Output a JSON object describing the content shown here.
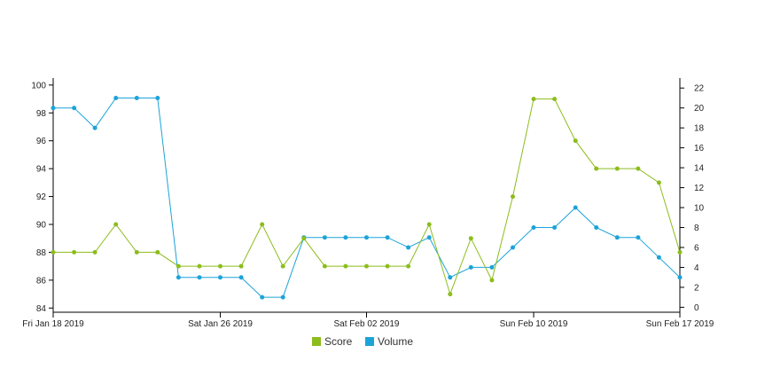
{
  "chart_data": {
    "type": "line",
    "x": [
      "2019-01-18",
      "2019-01-19",
      "2019-01-20",
      "2019-01-21",
      "2019-01-22",
      "2019-01-23",
      "2019-01-24",
      "2019-01-25",
      "2019-01-26",
      "2019-01-27",
      "2019-01-28",
      "2019-01-29",
      "2019-01-30",
      "2019-01-31",
      "2019-02-01",
      "2019-02-02",
      "2019-02-03",
      "2019-02-04",
      "2019-02-05",
      "2019-02-06",
      "2019-02-07",
      "2019-02-08",
      "2019-02-09",
      "2019-02-10",
      "2019-02-11",
      "2019-02-12",
      "2019-02-13",
      "2019-02-14",
      "2019-02-15",
      "2019-02-16",
      "2019-02-17"
    ],
    "x_ticks": [
      {
        "date": "2019-01-18",
        "label": "Fri Jan 18 2019"
      },
      {
        "date": "2019-01-26",
        "label": "Sat Jan 26 2019"
      },
      {
        "date": "2019-02-02",
        "label": "Sat Feb 02 2019"
      },
      {
        "date": "2019-02-10",
        "label": "Sun Feb 10 2019"
      },
      {
        "date": "2019-02-17",
        "label": "Sun Feb 17 2019"
      }
    ],
    "y_left": {
      "ticks": [
        84,
        86,
        88,
        90,
        92,
        94,
        96,
        98,
        100
      ],
      "range": [
        83.7,
        100.5
      ]
    },
    "y_right": {
      "ticks": [
        0,
        2,
        4,
        6,
        8,
        10,
        12,
        14,
        16,
        18,
        20,
        22
      ],
      "range": [
        -0.5,
        23
      ]
    },
    "series": [
      {
        "name": "Score",
        "axis": "left",
        "color": "#8cbd1c",
        "values": [
          88,
          88,
          88,
          90,
          88,
          88,
          87,
          87,
          87,
          87,
          90,
          87,
          89,
          87,
          87,
          87,
          87,
          87,
          90,
          85,
          89,
          86,
          92,
          99,
          99,
          96,
          94,
          94,
          94,
          93,
          88
        ]
      },
      {
        "name": "Volume",
        "axis": "right",
        "color": "#1ca3d9",
        "values": [
          20,
          20,
          18,
          21,
          21,
          21,
          3,
          3,
          3,
          3,
          1,
          1,
          7,
          7,
          7,
          7,
          7,
          6,
          7,
          3,
          4,
          4,
          6,
          8,
          8,
          10,
          8,
          7,
          7,
          5,
          3
        ]
      }
    ],
    "legend_position": "bottom-center",
    "grid": false
  },
  "legend": {
    "score_label": "Score",
    "volume_label": "Volume"
  }
}
